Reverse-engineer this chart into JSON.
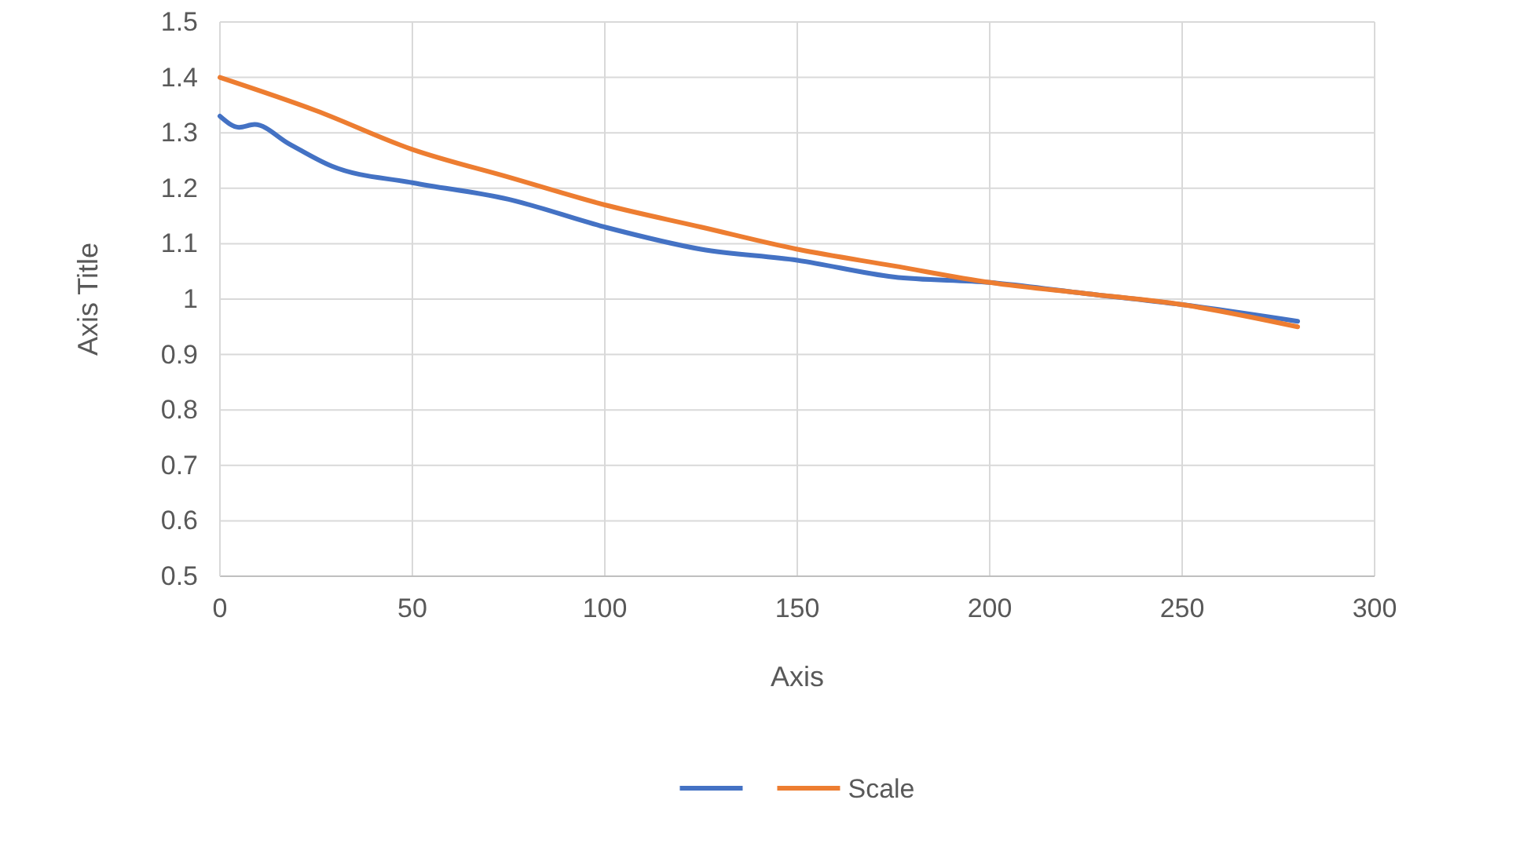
{
  "chart_data": {
    "type": "line",
    "xlabel": "Axis",
    "ylabel": "Axis Title",
    "xlim": [
      0,
      300
    ],
    "xticks": [
      0,
      50,
      100,
      150,
      200,
      250,
      300
    ],
    "ylim": [
      0.5,
      1.5
    ],
    "yticks": [
      0.5,
      0.6,
      0.7,
      0.8,
      0.9,
      1,
      1.1,
      1.2,
      1.3,
      1.4,
      1.5
    ],
    "grid": true,
    "legend": "bottom",
    "line_style": "solid",
    "series": [
      {
        "color": "#4472c4",
        "x": [
          0,
          5,
          9,
          18,
          29,
          50,
          75,
          100,
          125,
          150,
          175,
          200,
          225,
          250,
          280
        ],
        "values": [
          1.33,
          1.31,
          1.315,
          1.28,
          1.24,
          1.21,
          1.18,
          1.13,
          1.09,
          1.07,
          1.04,
          1.03,
          1.01,
          0.99,
          0.96
        ]
      },
      {
        "name": "Scale",
        "color": "#ed7d31",
        "x": [
          0,
          25,
          50,
          75,
          100,
          125,
          150,
          175,
          200,
          225,
          250,
          280
        ],
        "values": [
          1.4,
          1.34,
          1.27,
          1.22,
          1.17,
          1.13,
          1.09,
          1.06,
          1.03,
          1.01,
          0.99,
          0.95
        ]
      }
    ]
  }
}
